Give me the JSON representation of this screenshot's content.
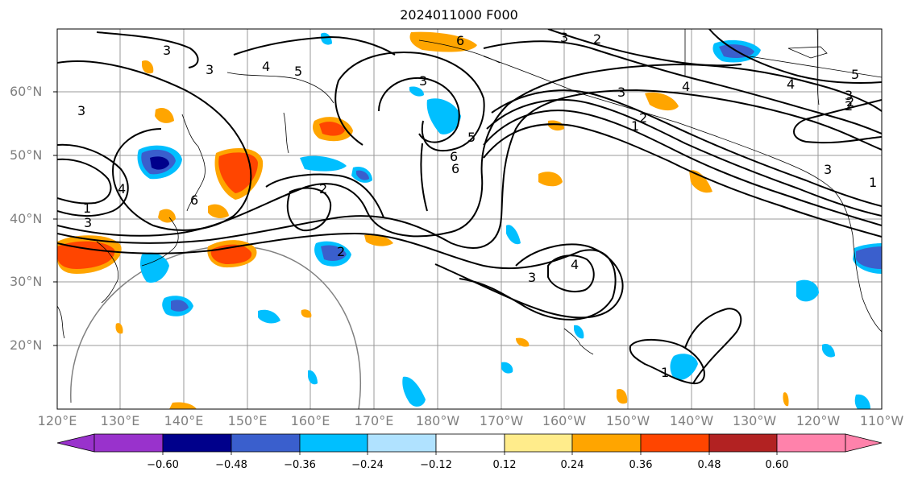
{
  "title": "2024011000 F000",
  "lat_labels": [
    "60°N",
    "50°N",
    "40°N",
    "30°N",
    "20°N"
  ],
  "lon_labels": [
    "120°E",
    "130°E",
    "140°E",
    "150°E",
    "160°E",
    "170°E",
    "180°W",
    "170°W",
    "160°W",
    "150°W",
    "140°W",
    "130°W",
    "120°W",
    "110°W"
  ],
  "contour_labels": [
    "3",
    "3",
    "4",
    "5",
    "3",
    "3",
    "2",
    "3",
    "4",
    "5",
    "2",
    "3",
    "1",
    "2",
    "1",
    "4",
    "6",
    "6",
    "2",
    "3",
    "4",
    "2",
    "1",
    "2",
    "3",
    "6",
    "6",
    "5",
    "3",
    "1",
    "3",
    "4"
  ],
  "colorbar": {
    "ticks": [
      "−0.60",
      "−0.48",
      "−0.36",
      "−0.24",
      "−0.12",
      "0.12",
      "0.24",
      "0.36",
      "0.48",
      "0.60"
    ],
    "colors": [
      "#9932cc",
      "#00008b",
      "#3a5fcd",
      "#00bfff",
      "#b0e2ff",
      "#ffffff",
      "#ffec8b",
      "#ffa500",
      "#ff4500",
      "#b22222",
      "#ff82ab"
    ]
  }
}
